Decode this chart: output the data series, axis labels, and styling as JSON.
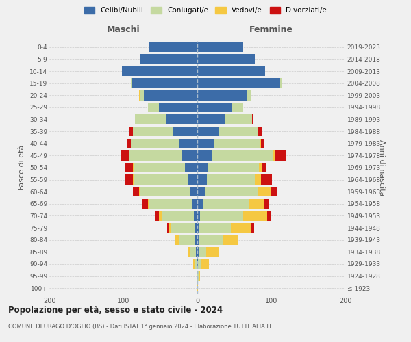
{
  "age_groups": [
    "100+",
    "95-99",
    "90-94",
    "85-89",
    "80-84",
    "75-79",
    "70-74",
    "65-69",
    "60-64",
    "55-59",
    "50-54",
    "45-49",
    "40-44",
    "35-39",
    "30-34",
    "25-29",
    "20-24",
    "15-19",
    "10-14",
    "5-9",
    "0-4"
  ],
  "birth_years": [
    "≤ 1923",
    "1924-1928",
    "1929-1933",
    "1934-1938",
    "1939-1943",
    "1944-1948",
    "1949-1953",
    "1954-1958",
    "1959-1963",
    "1964-1968",
    "1969-1973",
    "1974-1978",
    "1979-1983",
    "1984-1988",
    "1989-1993",
    "1994-1998",
    "1999-2003",
    "2004-2008",
    "2009-2013",
    "2014-2018",
    "2019-2023"
  ],
  "colors": {
    "celibi": "#3c6ca8",
    "coniugati": "#c5d9a0",
    "vedovi": "#f5c842",
    "divorziati": "#cc1111"
  },
  "maschi": {
    "celibi": [
      0,
      0,
      1,
      2,
      3,
      4,
      5,
      7,
      10,
      13,
      17,
      20,
      25,
      32,
      42,
      52,
      72,
      88,
      102,
      78,
      65
    ],
    "coniugati": [
      0,
      0,
      3,
      8,
      22,
      32,
      42,
      58,
      67,
      72,
      68,
      72,
      65,
      55,
      42,
      15,
      5,
      2,
      0,
      0,
      0
    ],
    "vedovi": [
      0,
      1,
      2,
      3,
      5,
      2,
      5,
      2,
      2,
      2,
      2,
      0,
      0,
      0,
      0,
      0,
      2,
      0,
      0,
      0,
      0
    ],
    "divorziati": [
      0,
      0,
      0,
      0,
      0,
      3,
      5,
      8,
      8,
      10,
      10,
      12,
      5,
      5,
      0,
      0,
      0,
      0,
      0,
      0,
      0
    ]
  },
  "femmine": {
    "celibi": [
      0,
      0,
      1,
      2,
      2,
      3,
      4,
      7,
      10,
      13,
      15,
      20,
      22,
      30,
      37,
      47,
      68,
      112,
      92,
      78,
      62
    ],
    "coniugati": [
      0,
      2,
      5,
      10,
      32,
      42,
      58,
      62,
      72,
      65,
      68,
      82,
      62,
      52,
      37,
      15,
      5,
      2,
      0,
      0,
      0
    ],
    "vedovi": [
      1,
      2,
      10,
      17,
      22,
      27,
      32,
      22,
      17,
      8,
      5,
      3,
      2,
      0,
      0,
      0,
      0,
      0,
      0,
      0,
      0
    ],
    "divorziati": [
      0,
      0,
      0,
      0,
      0,
      5,
      5,
      5,
      8,
      15,
      5,
      15,
      5,
      5,
      2,
      0,
      0,
      0,
      0,
      0,
      0
    ]
  },
  "xlim": 200,
  "title": "Popolazione per età, sesso e stato civile - 2024",
  "subtitle": "COMUNE DI URAGO D'OGLIO (BS) - Dati ISTAT 1° gennaio 2024 - Elaborazione TUTTITALIA.IT",
  "ylabel_left": "Fasce di età",
  "ylabel_right": "Anni di nascita",
  "xlabel_maschi": "Maschi",
  "xlabel_femmine": "Femmine",
  "legend_labels": [
    "Celibi/Nubili",
    "Coniugati/e",
    "Vedovi/e",
    "Divorziati/e"
  ],
  "background_color": "#f0f0f0"
}
